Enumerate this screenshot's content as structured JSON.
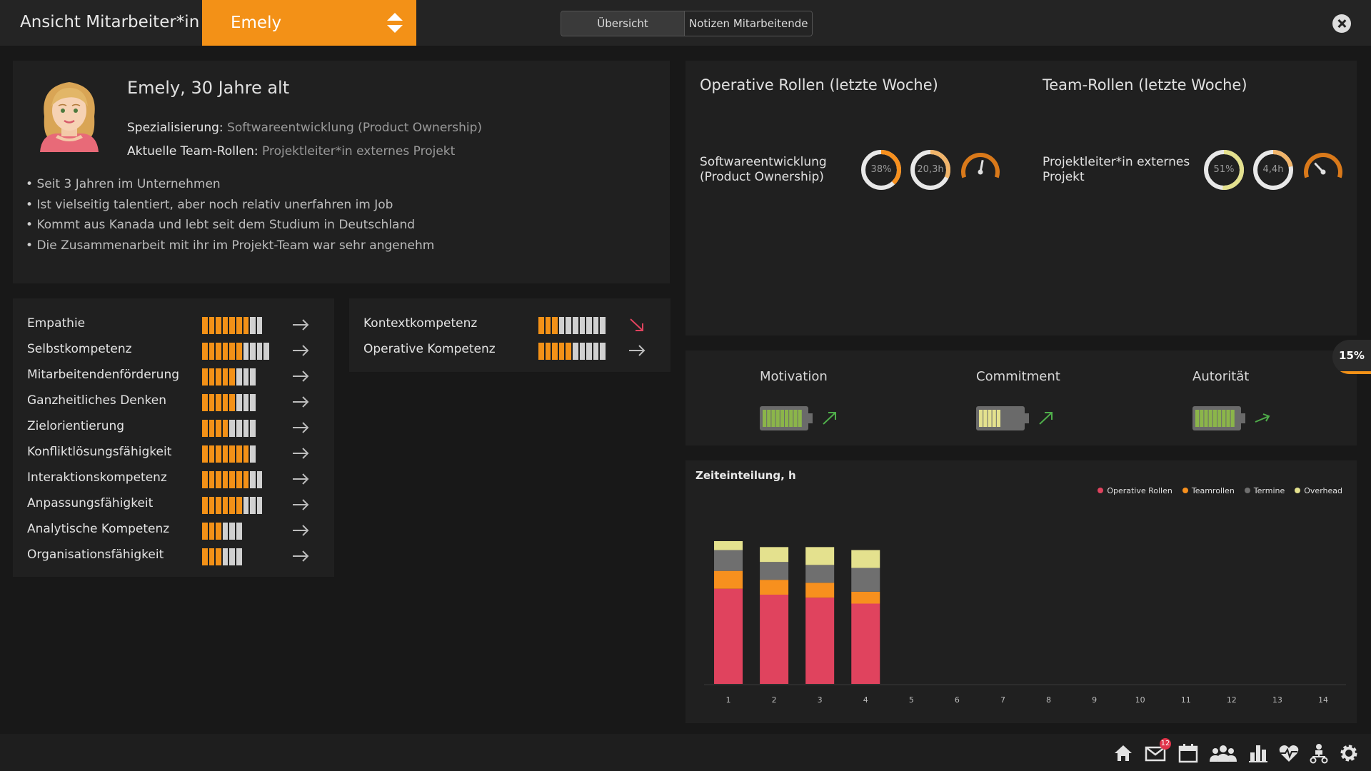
{
  "app": {
    "title": "Ansicht Mitarbeiter*in",
    "selected_employee": "Emely"
  },
  "tabs": [
    {
      "label": "Übersicht",
      "active": true
    },
    {
      "label": "Notizen Mitarbeitende",
      "active": false
    }
  ],
  "profile": {
    "headline": "Emely, 30 Jahre alt",
    "spec_key": "Spezialisierung:",
    "spec_value": "Softwareentwicklung (Product Ownership)",
    "roles_key": "Aktuelle Team-Rollen:",
    "roles_value": "Projektleiter*in externes Projekt",
    "bullets": [
      "Seit 3 Jahren im Unternehmen",
      "Ist vielseitig talentiert, aber noch relativ unerfahren im Job",
      "Kommt aus Kanada und lebt seit dem Studium in Deutschland",
      "Die Zusammenarbeit mit ihr im Projekt-Team war sehr angenehm"
    ]
  },
  "skills_left": [
    {
      "label": "Empathie",
      "filled": 7,
      "total": 9,
      "trend": "flat"
    },
    {
      "label": "Selbstkompetenz",
      "filled": 6,
      "total": 10,
      "trend": "flat"
    },
    {
      "label": "Mitarbeitendenförderung",
      "filled": 5,
      "total": 8,
      "trend": "flat"
    },
    {
      "label": "Ganzheitliches Denken",
      "filled": 5,
      "total": 8,
      "trend": "flat"
    },
    {
      "label": "Zielorientierung",
      "filled": 4,
      "total": 8,
      "trend": "flat"
    },
    {
      "label": "Konfliktlösungsfähigkeit",
      "filled": 7,
      "total": 8,
      "trend": "flat"
    },
    {
      "label": "Interaktionskompetenz",
      "filled": 7,
      "total": 9,
      "trend": "flat"
    },
    {
      "label": "Anpassungsfähigkeit",
      "filled": 6,
      "total": 9,
      "trend": "flat"
    },
    {
      "label": "Analytische Kompetenz",
      "filled": 3,
      "total": 6,
      "trend": "flat"
    },
    {
      "label": "Organisationsfähigkeit",
      "filled": 3,
      "total": 6,
      "trend": "flat"
    }
  ],
  "skills_right": [
    {
      "label": "Kontextkompetenz",
      "filled": 3,
      "total": 10,
      "trend": "down"
    },
    {
      "label": "Operative Kompetenz",
      "filled": 5,
      "total": 10,
      "trend": "flat"
    }
  ],
  "roles": {
    "operative_title": "Operative Rollen (letzte Woche)",
    "team_title": "Team-Rollen (letzte Woche)",
    "operative": {
      "name_line1": "Softwareentwicklung",
      "name_line2": "(Product Ownership)",
      "share_text": "38%",
      "share": 0.38,
      "hours_text": "20,3h",
      "hours_share": 0.32,
      "gauge": 0.55
    },
    "team": {
      "name_line1": "Projektleiter*in externes",
      "name_line2": "Projekt",
      "share_text": "51%",
      "share": 0.51,
      "hours_text": "4,4h",
      "hours_share": 0.22,
      "gauge": 0.3
    }
  },
  "mood": [
    {
      "label": "Motivation",
      "level": 0.9,
      "trend": "up"
    },
    {
      "label": "Commitment",
      "level": 0.5,
      "trend": "up"
    },
    {
      "label": "Autorität",
      "level": 0.85,
      "trend": "up-slight"
    }
  ],
  "side_badge": {
    "text": "15%",
    "level": 0.15
  },
  "colors": {
    "accent": "#f39117",
    "operative": "#e0435e",
    "team": "#f7901e",
    "termine": "#6f6f6f",
    "overhead": "#e4e18e",
    "gauge": "#d9791a"
  },
  "icons": [
    "home-icon",
    "mail-icon",
    "calendar-icon",
    "team-icon",
    "chart-icon",
    "health-icon",
    "org-icon",
    "gear-icon"
  ],
  "mail_count": "12",
  "chart_data": {
    "type": "bar",
    "title": "Zeiteinteilung, h",
    "categories": [
      "1",
      "2",
      "3",
      "4",
      "5",
      "6",
      "7",
      "8",
      "9",
      "10",
      "11",
      "12",
      "13",
      "14"
    ],
    "stacked": true,
    "series": [
      {
        "name": "Operative Rollen",
        "color": "#e0435e",
        "values": [
          32,
          30,
          29,
          27,
          0,
          0,
          0,
          0,
          0,
          0,
          0,
          0,
          0,
          0
        ]
      },
      {
        "name": "Teamrollen",
        "color": "#f7901e",
        "values": [
          6,
          5,
          5,
          4,
          0,
          0,
          0,
          0,
          0,
          0,
          0,
          0,
          0,
          0
        ]
      },
      {
        "name": "Termine",
        "color": "#6f6f6f",
        "values": [
          7,
          6,
          6,
          8,
          0,
          0,
          0,
          0,
          0,
          0,
          0,
          0,
          0,
          0
        ]
      },
      {
        "name": "Overhead",
        "color": "#e4e18e",
        "values": [
          3,
          5,
          6,
          6,
          0,
          0,
          0,
          0,
          0,
          0,
          0,
          0,
          0,
          0
        ]
      }
    ],
    "ylim": [
      0,
      60
    ],
    "legend": "top-right",
    "grid": false
  }
}
